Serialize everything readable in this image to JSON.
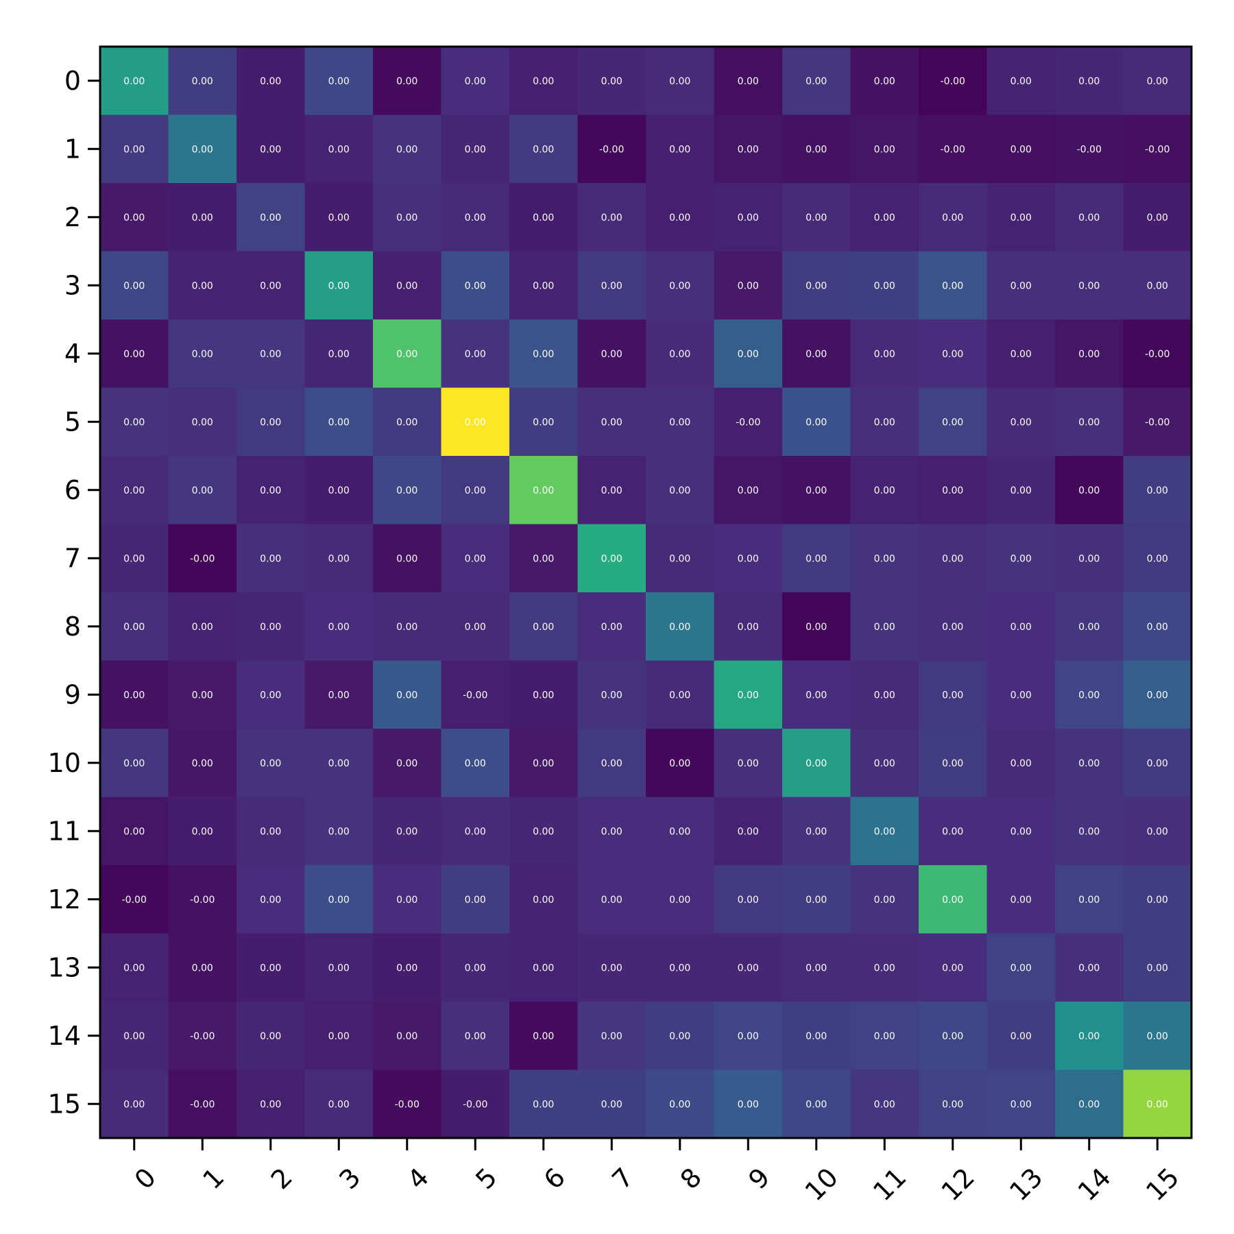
{
  "chart_data": {
    "type": "heatmap",
    "colormap": "viridis",
    "x_categories": [
      "0",
      "1",
      "2",
      "3",
      "4",
      "5",
      "6",
      "7",
      "8",
      "9",
      "10",
      "11",
      "12",
      "13",
      "14",
      "15"
    ],
    "y_categories": [
      "0",
      "1",
      "2",
      "3",
      "4",
      "5",
      "6",
      "7",
      "8",
      "9",
      "10",
      "11",
      "12",
      "13",
      "14",
      "15"
    ],
    "intensity": [
      [
        0.55,
        0.18,
        0.08,
        0.22,
        0.03,
        0.13,
        0.09,
        0.11,
        0.12,
        0.04,
        0.16,
        0.05,
        0.01,
        0.1,
        0.11,
        0.12
      ],
      [
        0.17,
        0.4,
        0.08,
        0.1,
        0.15,
        0.11,
        0.17,
        0.02,
        0.09,
        0.06,
        0.05,
        0.06,
        0.04,
        0.04,
        0.05,
        0.04
      ],
      [
        0.07,
        0.08,
        0.2,
        0.08,
        0.14,
        0.12,
        0.08,
        0.12,
        0.09,
        0.1,
        0.12,
        0.1,
        0.12,
        0.1,
        0.12,
        0.08
      ],
      [
        0.22,
        0.1,
        0.1,
        0.56,
        0.09,
        0.24,
        0.1,
        0.17,
        0.14,
        0.07,
        0.18,
        0.19,
        0.26,
        0.14,
        0.14,
        0.14
      ],
      [
        0.05,
        0.16,
        0.16,
        0.11,
        0.72,
        0.15,
        0.26,
        0.05,
        0.12,
        0.3,
        0.05,
        0.12,
        0.13,
        0.09,
        0.06,
        0.02
      ],
      [
        0.15,
        0.14,
        0.17,
        0.24,
        0.17,
        1.0,
        0.18,
        0.14,
        0.14,
        0.09,
        0.25,
        0.14,
        0.2,
        0.12,
        0.14,
        0.07
      ],
      [
        0.12,
        0.16,
        0.1,
        0.08,
        0.22,
        0.17,
        0.76,
        0.1,
        0.14,
        0.06,
        0.05,
        0.1,
        0.09,
        0.11,
        0.02,
        0.18
      ],
      [
        0.11,
        0.01,
        0.14,
        0.12,
        0.05,
        0.13,
        0.07,
        0.62,
        0.12,
        0.13,
        0.17,
        0.15,
        0.14,
        0.15,
        0.14,
        0.17
      ],
      [
        0.14,
        0.1,
        0.11,
        0.13,
        0.12,
        0.12,
        0.17,
        0.13,
        0.4,
        0.12,
        0.01,
        0.15,
        0.14,
        0.13,
        0.16,
        0.22
      ],
      [
        0.05,
        0.07,
        0.13,
        0.07,
        0.28,
        0.09,
        0.08,
        0.15,
        0.12,
        0.6,
        0.13,
        0.12,
        0.17,
        0.13,
        0.21,
        0.3
      ],
      [
        0.16,
        0.06,
        0.15,
        0.15,
        0.07,
        0.24,
        0.07,
        0.17,
        0.02,
        0.14,
        0.56,
        0.14,
        0.18,
        0.12,
        0.15,
        0.17
      ],
      [
        0.06,
        0.08,
        0.12,
        0.15,
        0.11,
        0.12,
        0.11,
        0.13,
        0.13,
        0.1,
        0.15,
        0.38,
        0.13,
        0.13,
        0.15,
        0.14
      ],
      [
        0.02,
        0.05,
        0.13,
        0.24,
        0.13,
        0.18,
        0.1,
        0.13,
        0.13,
        0.17,
        0.18,
        0.15,
        0.68,
        0.13,
        0.2,
        0.18
      ],
      [
        0.1,
        0.05,
        0.08,
        0.1,
        0.08,
        0.11,
        0.1,
        0.11,
        0.11,
        0.11,
        0.12,
        0.12,
        0.13,
        0.2,
        0.14,
        0.18
      ],
      [
        0.11,
        0.07,
        0.11,
        0.09,
        0.07,
        0.14,
        0.03,
        0.16,
        0.18,
        0.21,
        0.19,
        0.2,
        0.22,
        0.18,
        0.5,
        0.4
      ],
      [
        0.12,
        0.04,
        0.09,
        0.12,
        0.03,
        0.08,
        0.19,
        0.19,
        0.23,
        0.29,
        0.22,
        0.16,
        0.2,
        0.21,
        0.36,
        0.84
      ]
    ],
    "cell_labels": [
      [
        "0.00",
        "0.00",
        "0.00",
        "0.00",
        "0.00",
        "0.00",
        "0.00",
        "0.00",
        "0.00",
        "0.00",
        "0.00",
        "0.00",
        "-0.00",
        "0.00",
        "0.00",
        "0.00"
      ],
      [
        "0.00",
        "0.00",
        "0.00",
        "0.00",
        "0.00",
        "0.00",
        "0.00",
        "-0.00",
        "0.00",
        "0.00",
        "0.00",
        "0.00",
        "-0.00",
        "0.00",
        "-0.00",
        "-0.00"
      ],
      [
        "0.00",
        "0.00",
        "0.00",
        "0.00",
        "0.00",
        "0.00",
        "0.00",
        "0.00",
        "0.00",
        "0.00",
        "0.00",
        "0.00",
        "0.00",
        "0.00",
        "0.00",
        "0.00"
      ],
      [
        "0.00",
        "0.00",
        "0.00",
        "0.00",
        "0.00",
        "0.00",
        "0.00",
        "0.00",
        "0.00",
        "0.00",
        "0.00",
        "0.00",
        "0.00",
        "0.00",
        "0.00",
        "0.00"
      ],
      [
        "0.00",
        "0.00",
        "0.00",
        "0.00",
        "0.00",
        "0.00",
        "0.00",
        "0.00",
        "0.00",
        "0.00",
        "0.00",
        "0.00",
        "0.00",
        "0.00",
        "0.00",
        "-0.00"
      ],
      [
        "0.00",
        "0.00",
        "0.00",
        "0.00",
        "0.00",
        "0.00",
        "0.00",
        "0.00",
        "0.00",
        "-0.00",
        "0.00",
        "0.00",
        "0.00",
        "0.00",
        "0.00",
        "-0.00"
      ],
      [
        "0.00",
        "0.00",
        "0.00",
        "0.00",
        "0.00",
        "0.00",
        "0.00",
        "0.00",
        "0.00",
        "0.00",
        "0.00",
        "0.00",
        "0.00",
        "0.00",
        "0.00",
        "0.00"
      ],
      [
        "0.00",
        "-0.00",
        "0.00",
        "0.00",
        "0.00",
        "0.00",
        "0.00",
        "0.00",
        "0.00",
        "0.00",
        "0.00",
        "0.00",
        "0.00",
        "0.00",
        "0.00",
        "0.00"
      ],
      [
        "0.00",
        "0.00",
        "0.00",
        "0.00",
        "0.00",
        "0.00",
        "0.00",
        "0.00",
        "0.00",
        "0.00",
        "0.00",
        "0.00",
        "0.00",
        "0.00",
        "0.00",
        "0.00"
      ],
      [
        "0.00",
        "0.00",
        "0.00",
        "0.00",
        "0.00",
        "-0.00",
        "0.00",
        "0.00",
        "0.00",
        "0.00",
        "0.00",
        "0.00",
        "0.00",
        "0.00",
        "0.00",
        "0.00"
      ],
      [
        "0.00",
        "0.00",
        "0.00",
        "0.00",
        "0.00",
        "0.00",
        "0.00",
        "0.00",
        "0.00",
        "0.00",
        "0.00",
        "0.00",
        "0.00",
        "0.00",
        "0.00",
        "0.00"
      ],
      [
        "0.00",
        "0.00",
        "0.00",
        "0.00",
        "0.00",
        "0.00",
        "0.00",
        "0.00",
        "0.00",
        "0.00",
        "0.00",
        "0.00",
        "0.00",
        "0.00",
        "0.00",
        "0.00"
      ],
      [
        "-0.00",
        "-0.00",
        "0.00",
        "0.00",
        "0.00",
        "0.00",
        "0.00",
        "0.00",
        "0.00",
        "0.00",
        "0.00",
        "0.00",
        "0.00",
        "0.00",
        "0.00",
        "0.00"
      ],
      [
        "0.00",
        "0.00",
        "0.00",
        "0.00",
        "0.00",
        "0.00",
        "0.00",
        "0.00",
        "0.00",
        "0.00",
        "0.00",
        "0.00",
        "0.00",
        "0.00",
        "0.00",
        "0.00"
      ],
      [
        "0.00",
        "-0.00",
        "0.00",
        "0.00",
        "0.00",
        "0.00",
        "0.00",
        "0.00",
        "0.00",
        "0.00",
        "0.00",
        "0.00",
        "0.00",
        "0.00",
        "0.00",
        "0.00"
      ],
      [
        "0.00",
        "-0.00",
        "0.00",
        "0.00",
        "-0.00",
        "-0.00",
        "0.00",
        "0.00",
        "0.00",
        "0.00",
        "0.00",
        "0.00",
        "0.00",
        "0.00",
        "0.00",
        "0.00"
      ]
    ],
    "colorbar": false,
    "grid": false,
    "x_tick_rotation_deg": 45
  }
}
